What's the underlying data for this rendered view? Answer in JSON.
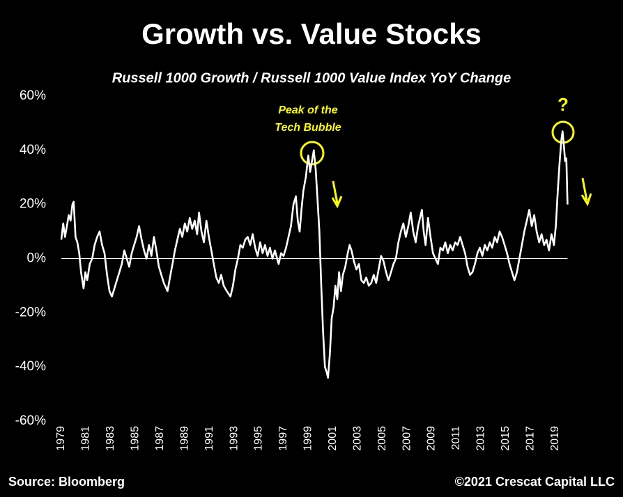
{
  "chart_data": {
    "type": "line",
    "title": "Growth vs. Value Stocks",
    "subtitle": "Russell 1000 Growth / Russell 1000 Value Index YoY Change",
    "annotations": [
      "Peak of the",
      "Tech Bubble",
      "?"
    ],
    "source": "Source: Bloomberg",
    "credit": "©2021 Crescat Capital LLC",
    "color": "#ffffff",
    "annotation_color": "#ffff00",
    "x": [
      1979.0,
      1979.15,
      1979.3,
      1979.45,
      1979.6,
      1979.75,
      1979.9,
      1980.0,
      1980.15,
      1980.3,
      1980.45,
      1980.6,
      1980.8,
      1980.95,
      1981.1,
      1981.3,
      1981.5,
      1981.7,
      1981.9,
      1982.1,
      1982.3,
      1982.5,
      1982.7,
      1982.9,
      1983.1,
      1983.3,
      1983.5,
      1983.7,
      1983.9,
      1984.1,
      1984.3,
      1984.5,
      1984.7,
      1984.9,
      1985.1,
      1985.3,
      1985.5,
      1985.7,
      1985.9,
      1986.1,
      1986.3,
      1986.5,
      1986.7,
      1986.9,
      1987.1,
      1987.3,
      1987.6,
      1987.8,
      1988.0,
      1988.2,
      1988.4,
      1988.6,
      1988.8,
      1989.0,
      1989.2,
      1989.4,
      1989.6,
      1989.8,
      1990.0,
      1990.15,
      1990.35,
      1990.55,
      1990.75,
      1990.95,
      1991.15,
      1991.35,
      1991.55,
      1991.75,
      1991.95,
      1992.15,
      1992.4,
      1992.7,
      1992.9,
      1993.1,
      1993.3,
      1993.5,
      1993.7,
      1993.9,
      1994.1,
      1994.3,
      1994.5,
      1994.7,
      1994.9,
      1995.1,
      1995.3,
      1995.5,
      1995.7,
      1995.9,
      1996.1,
      1996.3,
      1996.6,
      1996.8,
      1997.0,
      1997.2,
      1997.4,
      1997.6,
      1997.8,
      1998.0,
      1998.15,
      1998.3,
      1998.45,
      1998.6,
      1998.8,
      1999.0,
      1999.15,
      1999.3,
      1999.45,
      1999.6,
      1999.75,
      1999.9,
      2000.05,
      2000.2,
      2000.35,
      2000.5,
      2000.6,
      2000.75,
      2000.9,
      2001.05,
      2001.2,
      2001.35,
      2001.5,
      2001.65,
      2001.8,
      2002.0,
      2002.2,
      2002.35,
      2002.5,
      2002.7,
      2002.9,
      2003.1,
      2003.3,
      2003.5,
      2003.7,
      2003.9,
      2004.1,
      2004.3,
      2004.5,
      2004.7,
      2004.9,
      2005.1,
      2005.3,
      2005.5,
      2005.7,
      2005.9,
      2006.1,
      2006.3,
      2006.5,
      2006.7,
      2006.9,
      2007.1,
      2007.3,
      2007.5,
      2007.7,
      2007.9,
      2008.05,
      2008.2,
      2008.35,
      2008.5,
      2008.7,
      2008.9,
      2009.1,
      2009.3,
      2009.5,
      2009.7,
      2009.9,
      2010.1,
      2010.3,
      2010.5,
      2010.7,
      2010.9,
      2011.1,
      2011.3,
      2011.5,
      2011.7,
      2011.9,
      2012.1,
      2012.3,
      2012.5,
      2012.7,
      2012.9,
      2013.1,
      2013.3,
      2013.5,
      2013.7,
      2013.9,
      2014.1,
      2014.3,
      2014.5,
      2014.7,
      2014.9,
      2015.1,
      2015.3,
      2015.5,
      2015.7,
      2015.9,
      2016.1,
      2016.3,
      2016.5,
      2016.7,
      2016.9,
      2017.1,
      2017.3,
      2017.5,
      2017.7,
      2017.9,
      2018.1,
      2018.3,
      2018.5,
      2018.7,
      2018.9,
      2019.05,
      2019.2,
      2019.35,
      2019.5,
      2019.6,
      2019.7,
      2019.8,
      2019.9,
      2020.0
    ],
    "values": [
      7,
      13,
      8,
      12,
      16,
      14,
      20,
      21,
      8,
      6,
      2,
      -5,
      -11,
      -5,
      -8,
      -2,
      0,
      5,
      8,
      10,
      5,
      2,
      -6,
      -12,
      -14,
      -11,
      -8,
      -5,
      -2,
      3,
      0,
      -3,
      2,
      5,
      8,
      12,
      7,
      3,
      0,
      5,
      1,
      8,
      3,
      -3,
      -6,
      -9,
      -12,
      -7,
      -2,
      3,
      7,
      11,
      8,
      13,
      10,
      15,
      11,
      14,
      9,
      17,
      10,
      6,
      14,
      8,
      3,
      -2,
      -7,
      -9,
      -6,
      -10,
      -12,
      -14,
      -10,
      -4,
      0,
      5,
      4,
      7,
      8,
      5,
      9,
      4,
      1,
      6,
      2,
      5,
      1,
      4,
      0,
      3,
      -2,
      2,
      1,
      4,
      8,
      12,
      20,
      23,
      14,
      10,
      18,
      25,
      30,
      38,
      32,
      36,
      40,
      33,
      22,
      10,
      -10,
      -27,
      -40,
      -42,
      -44,
      -35,
      -22,
      -18,
      -10,
      -15,
      -5,
      -12,
      -6,
      -3,
      2,
      5,
      3,
      -1,
      -4,
      -2,
      -8,
      -9,
      -7,
      -10,
      -9,
      -6,
      -9,
      -4,
      1,
      -1,
      -5,
      -8,
      -5,
      -2,
      0,
      6,
      10,
      13,
      8,
      12,
      17,
      10,
      6,
      12,
      15,
      18,
      10,
      5,
      15,
      8,
      2,
      0,
      -2,
      4,
      3,
      6,
      2,
      5,
      3,
      6,
      5,
      8,
      5,
      2,
      -3,
      -6,
      -5,
      -2,
      2,
      4,
      1,
      5,
      3,
      6,
      4,
      8,
      6,
      10,
      8,
      5,
      2,
      -2,
      -5,
      -8,
      -5,
      0,
      5,
      10,
      14,
      18,
      12,
      16,
      10,
      6,
      9,
      5,
      7,
      3,
      9,
      5,
      12,
      24,
      35,
      44,
      47,
      42,
      36,
      37,
      20
    ],
    "xlim": [
      1979,
      2021.5
    ],
    "xticks": [
      1979,
      1981,
      1983,
      1985,
      1987,
      1989,
      1991,
      1993,
      1995,
      1997,
      1999,
      2001,
      2003,
      2005,
      2007,
      2009,
      2011,
      2013,
      2015,
      2017,
      2019
    ],
    "ylim": [
      -60,
      60
    ],
    "yticks": [
      {
        "value": 60,
        "label": "60%"
      },
      {
        "value": 40,
        "label": "40%"
      },
      {
        "value": 20,
        "label": "20%"
      },
      {
        "value": 0,
        "label": "0%"
      },
      {
        "value": -20,
        "label": "-20%"
      },
      {
        "value": -40,
        "label": "-40%"
      },
      {
        "value": -60,
        "label": "-60%"
      }
    ],
    "grid": false
  }
}
